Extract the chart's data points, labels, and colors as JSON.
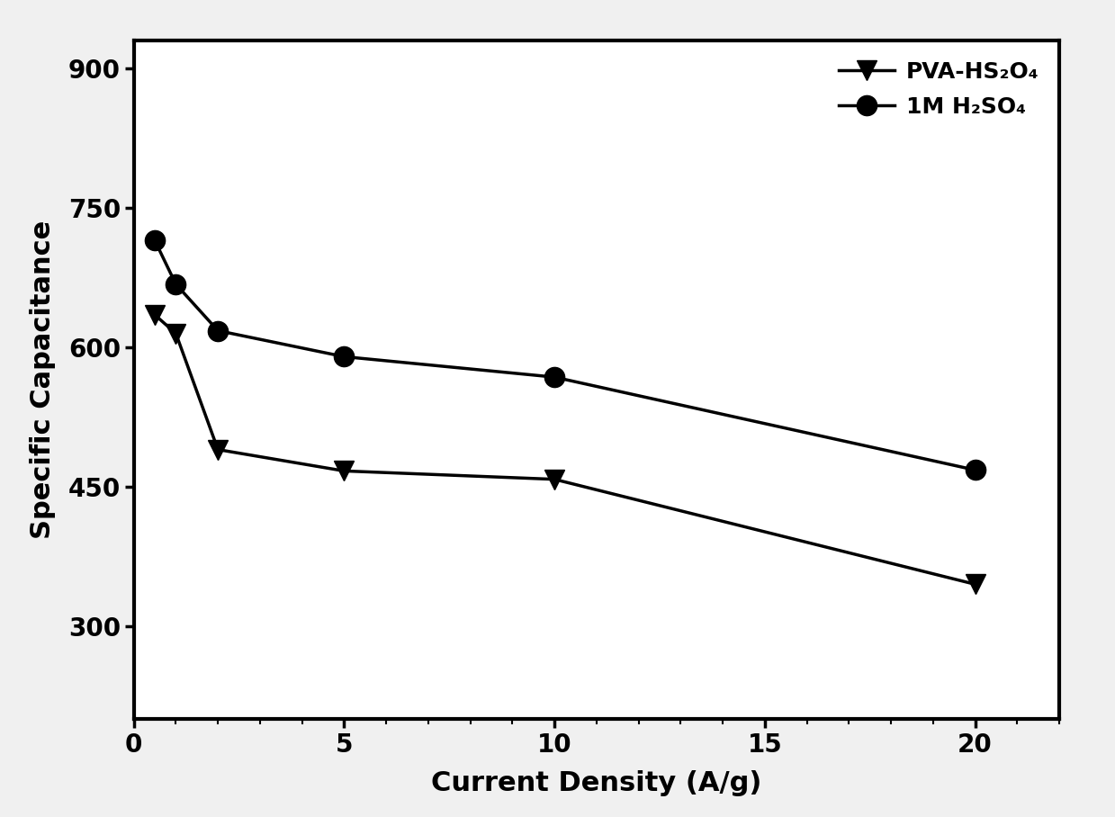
{
  "pva_x": [
    0.5,
    1,
    2,
    5,
    10,
    20
  ],
  "pva_y": [
    635,
    615,
    490,
    467,
    458,
    345
  ],
  "h2so4_x": [
    0.5,
    1,
    2,
    5,
    10,
    20
  ],
  "h2so4_y": [
    715,
    668,
    618,
    590,
    568,
    468
  ],
  "xlabel": "Current Density (A/g)",
  "ylabel": "Specific Capacitance",
  "xlim": [
    0,
    22
  ],
  "ylim": [
    200,
    930
  ],
  "yticks": [
    300,
    450,
    600,
    750,
    900
  ],
  "xticks": [
    0,
    5,
    10,
    15,
    20
  ],
  "legend_pva": "PVA-HS₂O₄",
  "legend_h2so4": "1M H₂SO₄",
  "line_color": "#000000",
  "marker_color": "#000000",
  "background_color": "#f0f0f0",
  "plot_bg_color": "#ffffff",
  "label_fontsize": 22,
  "tick_fontsize": 20,
  "legend_fontsize": 18,
  "linewidth": 2.5,
  "markersize": 16
}
